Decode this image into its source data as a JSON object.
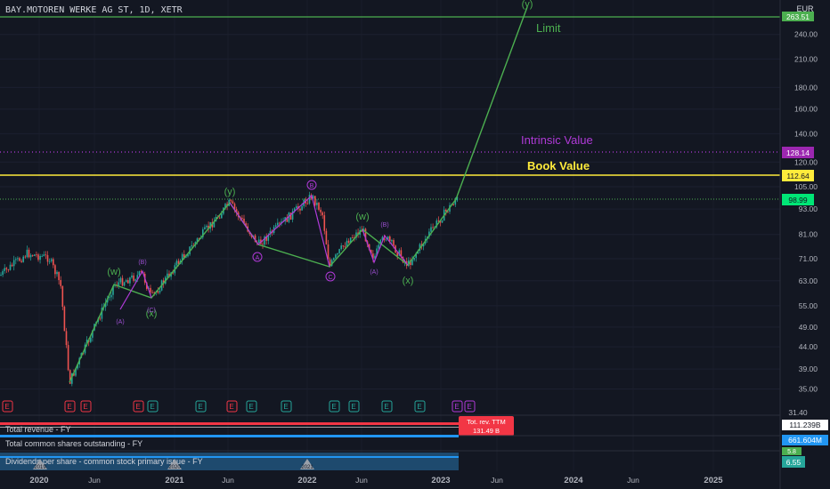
{
  "symbol_header": "BAY.MOTOREN WERKE AG ST, 1D, XETR",
  "currency": "EUR",
  "colors": {
    "background": "#131722",
    "grid": "#1f2433",
    "candle_up": "#26a69a",
    "candle_down": "#ef5350",
    "wave_green": "#4caf50",
    "wave_purple": "#b03ad8",
    "book_value": "#ffeb3b",
    "intrinsic_value": "#b03ad8",
    "current_price": "#4caf50",
    "panel_blue": "#2196f3",
    "panel_red": "#f23645"
  },
  "price_axis": {
    "scale": "log",
    "range": [
      31.4,
      264
    ],
    "ticks": [
      "240.00",
      "210.00",
      "180.00",
      "160.00",
      "140.00",
      "120.00",
      "105.00",
      "93.00",
      "81.00",
      "71.00",
      "63.00",
      "55.00",
      "49.00",
      "44.00",
      "39.00",
      "35.00"
    ],
    "tick_values": [
      240,
      210,
      180,
      160,
      140,
      120,
      105,
      93,
      81,
      71,
      63,
      55,
      49,
      44,
      39,
      35
    ],
    "bottom_label": "31.40",
    "badge_limit": "263.51",
    "badge_intrinsic": "128.14",
    "badge_book": "112.64",
    "badge_price": "98.99"
  },
  "time_axis": {
    "labels": [
      "2020",
      "Jun",
      "2021",
      "Jun",
      "2022",
      "Jun",
      "2023",
      "Jun",
      "2024",
      "Jun",
      "2025"
    ],
    "bold_labels": [
      "2020",
      "2021",
      "2022",
      "2023",
      "2024",
      "2025"
    ]
  },
  "levels": {
    "limit_label": "Limit",
    "intrinsic_label": "Intrinsic Value",
    "book_label": "Book Value",
    "limit_value": 263.51,
    "intrinsic_value": 128.14,
    "book_value": 112.64,
    "current_value": 98.99
  },
  "wave_labels": {
    "y_top": "(y)",
    "y_mid": "(y)",
    "w_left": "(w)",
    "x_left": "(x)",
    "w_right": "(w)",
    "x_right": "(x)",
    "A_left": "(A)",
    "B_left": "(B)",
    "C_left": "(C)",
    "A_circ": "A",
    "B_circ": "B",
    "C_circ": "C",
    "A_right": "(A)",
    "B_right": "(B)"
  },
  "events": {
    "earnings": [
      "E",
      "E",
      "E",
      "E",
      "E",
      "E",
      "E",
      "E",
      "E",
      "E",
      "E",
      "E",
      "E",
      "E",
      "E",
      "E"
    ],
    "dividend": "D"
  },
  "indicators": {
    "revenue": {
      "label": "Total revenue - FY",
      "value": "111.239B",
      "tooltip_title": "Tot. rev. TTM",
      "tooltip_value": "131.49 B"
    },
    "shares": {
      "label": "Total common shares outstanding - FY",
      "value": "661.604M"
    },
    "dividends": {
      "label": "Dividends per share - common stock primary issue - FY",
      "value_a": "5.8",
      "value_b": "6.55",
      "badges": [
        "2019",
        "2020",
        "2021"
      ]
    }
  }
}
